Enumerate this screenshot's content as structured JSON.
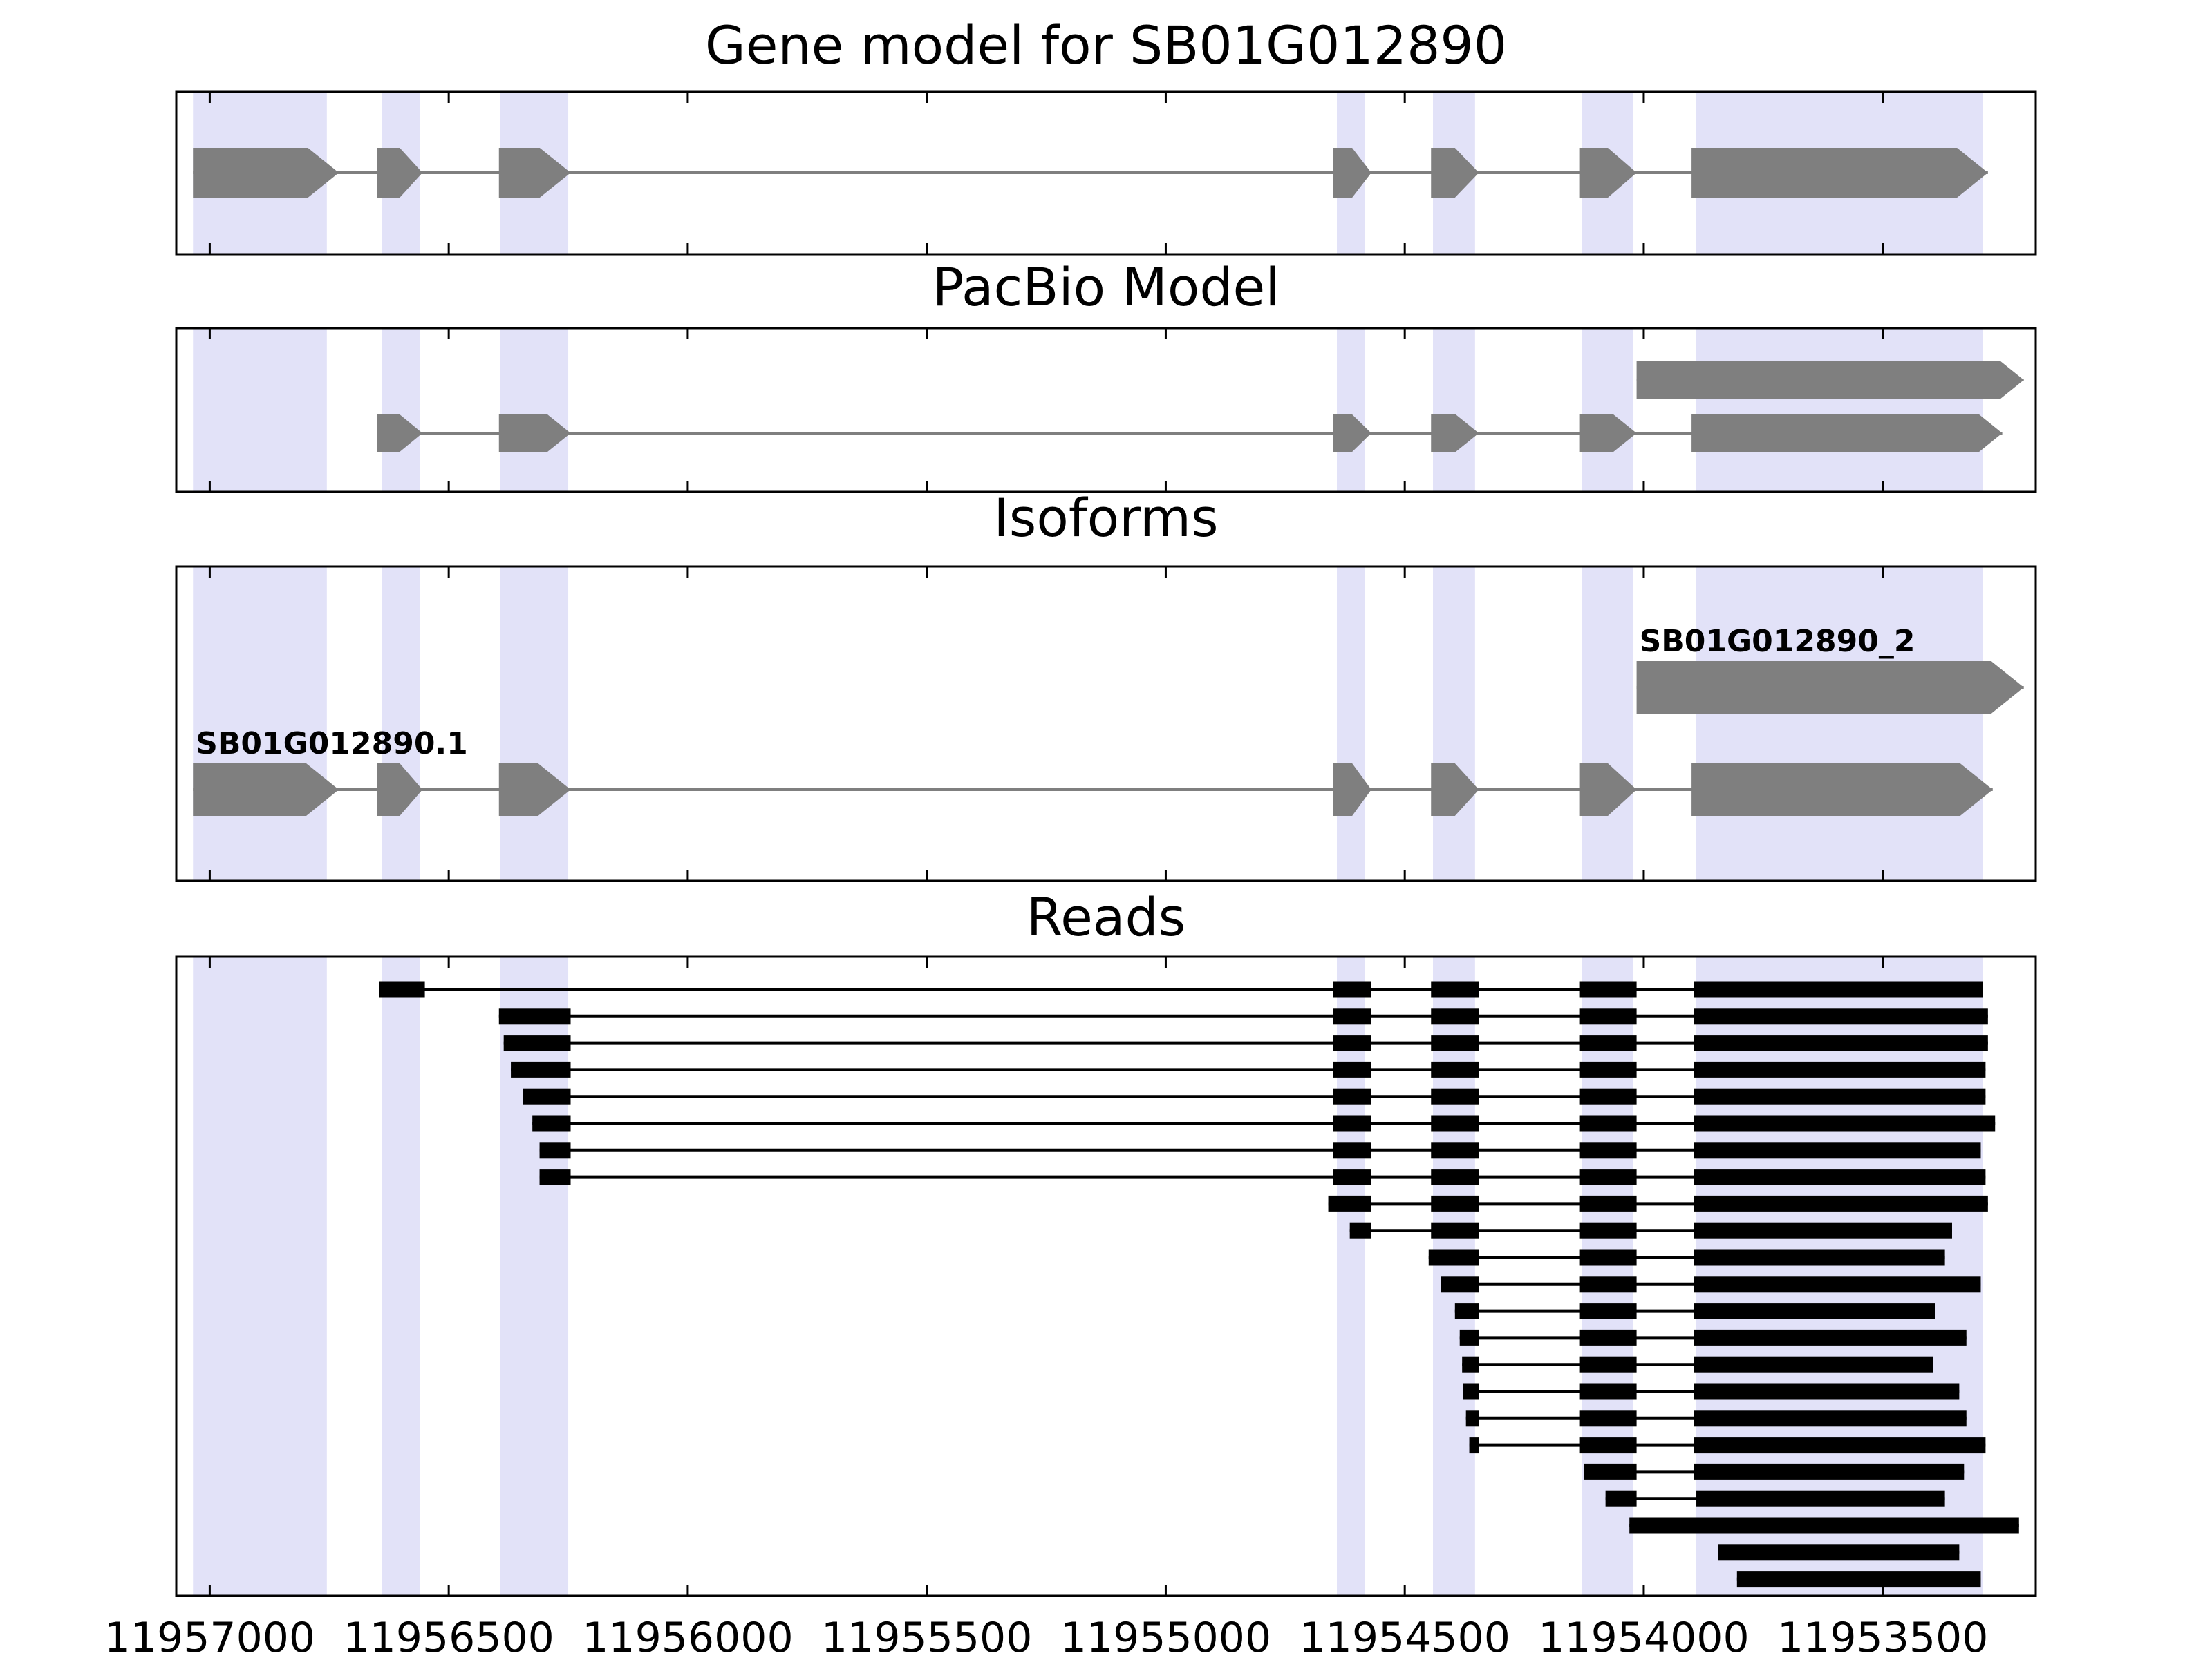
{
  "chart_data": {
    "type": "genome-browser",
    "figure_width": 3200,
    "figure_height": 2400,
    "xaxis": {
      "domain": [
        11957070,
        11953180
      ],
      "reversed": true,
      "ticks": [
        11957000,
        11956500,
        11956000,
        11955500,
        11955000,
        11954500,
        11954000,
        11953500
      ],
      "tick_labels": [
        "11957000",
        "11956500",
        "11956000",
        "11955500",
        "11955000",
        "11954500",
        "11954000",
        "11953500"
      ]
    },
    "highlight_regions": [
      [
        11957035,
        11956755
      ],
      [
        11956640,
        11956560
      ],
      [
        11956392,
        11956250
      ],
      [
        11954642,
        11954583
      ],
      [
        11954441,
        11954353
      ],
      [
        11954129,
        11954023
      ],
      [
        11953890,
        11953291
      ]
    ],
    "colors": {
      "exon": "#7f7f7f",
      "read": "#000000",
      "highlight": "#e2e2f8",
      "axis": "#000000",
      "background": "#ffffff",
      "text": "#000000"
    },
    "panels": [
      {
        "id": "gene-model",
        "title": "Gene model for SB01G012890",
        "transcripts": [
          {
            "label": "",
            "exons": [
              [
                11957035,
                11956730
              ],
              [
                11956650,
                11956555
              ],
              [
                11956395,
                11956245
              ],
              [
                11954650,
                11954570
              ],
              [
                11954445,
                11954345
              ],
              [
                11954135,
                11954015
              ],
              [
                11953900,
                11953280
              ]
            ]
          }
        ]
      },
      {
        "id": "pacbio-model",
        "title": "PacBio Model",
        "transcripts": [
          {
            "label": "",
            "exons": [
              [
                11954015,
                11953205
              ]
            ]
          },
          {
            "label": "",
            "exons": [
              [
                11956650,
                11956555
              ],
              [
                11956395,
                11956245
              ],
              [
                11954650,
                11954570
              ],
              [
                11954445,
                11954345
              ],
              [
                11954135,
                11954015
              ],
              [
                11953900,
                11953250
              ]
            ]
          }
        ]
      },
      {
        "id": "isoforms",
        "title": "Isoforms",
        "transcripts": [
          {
            "label": "SB01G012890_2",
            "exons": [
              [
                11954015,
                11953205
              ]
            ]
          },
          {
            "label": "SB01G012890.1",
            "exons": [
              [
                11957035,
                11956730
              ],
              [
                11956650,
                11956555
              ],
              [
                11956395,
                11956245
              ],
              [
                11954650,
                11954570
              ],
              [
                11954445,
                11954345
              ],
              [
                11954135,
                11954015
              ],
              [
                11953900,
                11953270
              ]
            ]
          }
        ]
      },
      {
        "id": "reads",
        "title": "Reads",
        "reads": [
          [
            [
              11956645,
              11956550
            ],
            [
              11954650,
              11954570
            ],
            [
              11954445,
              11954345
            ],
            [
              11954135,
              11954015
            ],
            [
              11953895,
              11953290
            ]
          ],
          [
            [
              11956395,
              11956245
            ],
            [
              11954650,
              11954570
            ],
            [
              11954445,
              11954345
            ],
            [
              11954135,
              11954015
            ],
            [
              11953895,
              11953280
            ]
          ],
          [
            [
              11956385,
              11956245
            ],
            [
              11954650,
              11954570
            ],
            [
              11954445,
              11954345
            ],
            [
              11954135,
              11954015
            ],
            [
              11953895,
              11953280
            ]
          ],
          [
            [
              11956370,
              11956245
            ],
            [
              11954650,
              11954570
            ],
            [
              11954445,
              11954345
            ],
            [
              11954135,
              11954015
            ],
            [
              11953895,
              11953285
            ]
          ],
          [
            [
              11956345,
              11956245
            ],
            [
              11954650,
              11954570
            ],
            [
              11954445,
              11954345
            ],
            [
              11954135,
              11954015
            ],
            [
              11953895,
              11953285
            ]
          ],
          [
            [
              11956325,
              11956245
            ],
            [
              11954650,
              11954570
            ],
            [
              11954445,
              11954345
            ],
            [
              11954135,
              11954015
            ],
            [
              11953895,
              11953265
            ]
          ],
          [
            [
              11956310,
              11956245
            ],
            [
              11954650,
              11954570
            ],
            [
              11954445,
              11954345
            ],
            [
              11954135,
              11954015
            ],
            [
              11953895,
              11953295
            ]
          ],
          [
            [
              11956310,
              11956245
            ],
            [
              11954650,
              11954570
            ],
            [
              11954445,
              11954345
            ],
            [
              11954135,
              11954015
            ],
            [
              11953895,
              11953285
            ]
          ],
          [
            [
              11954660,
              11954570
            ],
            [
              11954445,
              11954345
            ],
            [
              11954135,
              11954015
            ],
            [
              11953895,
              11953280
            ]
          ],
          [
            [
              11954615,
              11954570
            ],
            [
              11954445,
              11954345
            ],
            [
              11954135,
              11954015
            ],
            [
              11953895,
              11953355
            ]
          ],
          [
            [
              11954450,
              11954345
            ],
            [
              11954135,
              11954015
            ],
            [
              11953895,
              11953370
            ]
          ],
          [
            [
              11954425,
              11954345
            ],
            [
              11954135,
              11954015
            ],
            [
              11953895,
              11953295
            ]
          ],
          [
            [
              11954395,
              11954345
            ],
            [
              11954135,
              11954015
            ],
            [
              11953895,
              11953390
            ]
          ],
          [
            [
              11954385,
              11954345
            ],
            [
              11954135,
              11954015
            ],
            [
              11953895,
              11953325
            ]
          ],
          [
            [
              11954380,
              11954345
            ],
            [
              11954135,
              11954015
            ],
            [
              11953895,
              11953395
            ]
          ],
          [
            [
              11954378,
              11954345
            ],
            [
              11954135,
              11954015
            ],
            [
              11953895,
              11953340
            ]
          ],
          [
            [
              11954372,
              11954345
            ],
            [
              11954135,
              11954015
            ],
            [
              11953895,
              11953325
            ]
          ],
          [
            [
              11954365,
              11954345
            ],
            [
              11954135,
              11954015
            ],
            [
              11953895,
              11953285
            ]
          ],
          [
            [
              11954125,
              11954015
            ],
            [
              11953895,
              11953330
            ]
          ],
          [
            [
              11954080,
              11954015
            ],
            [
              11953890,
              11953370
            ]
          ],
          [
            [
              11954030,
              11953215
            ]
          ],
          [
            [
              11953845,
              11953340
            ]
          ],
          [
            [
              11953805,
              11953295
            ]
          ]
        ]
      }
    ]
  }
}
